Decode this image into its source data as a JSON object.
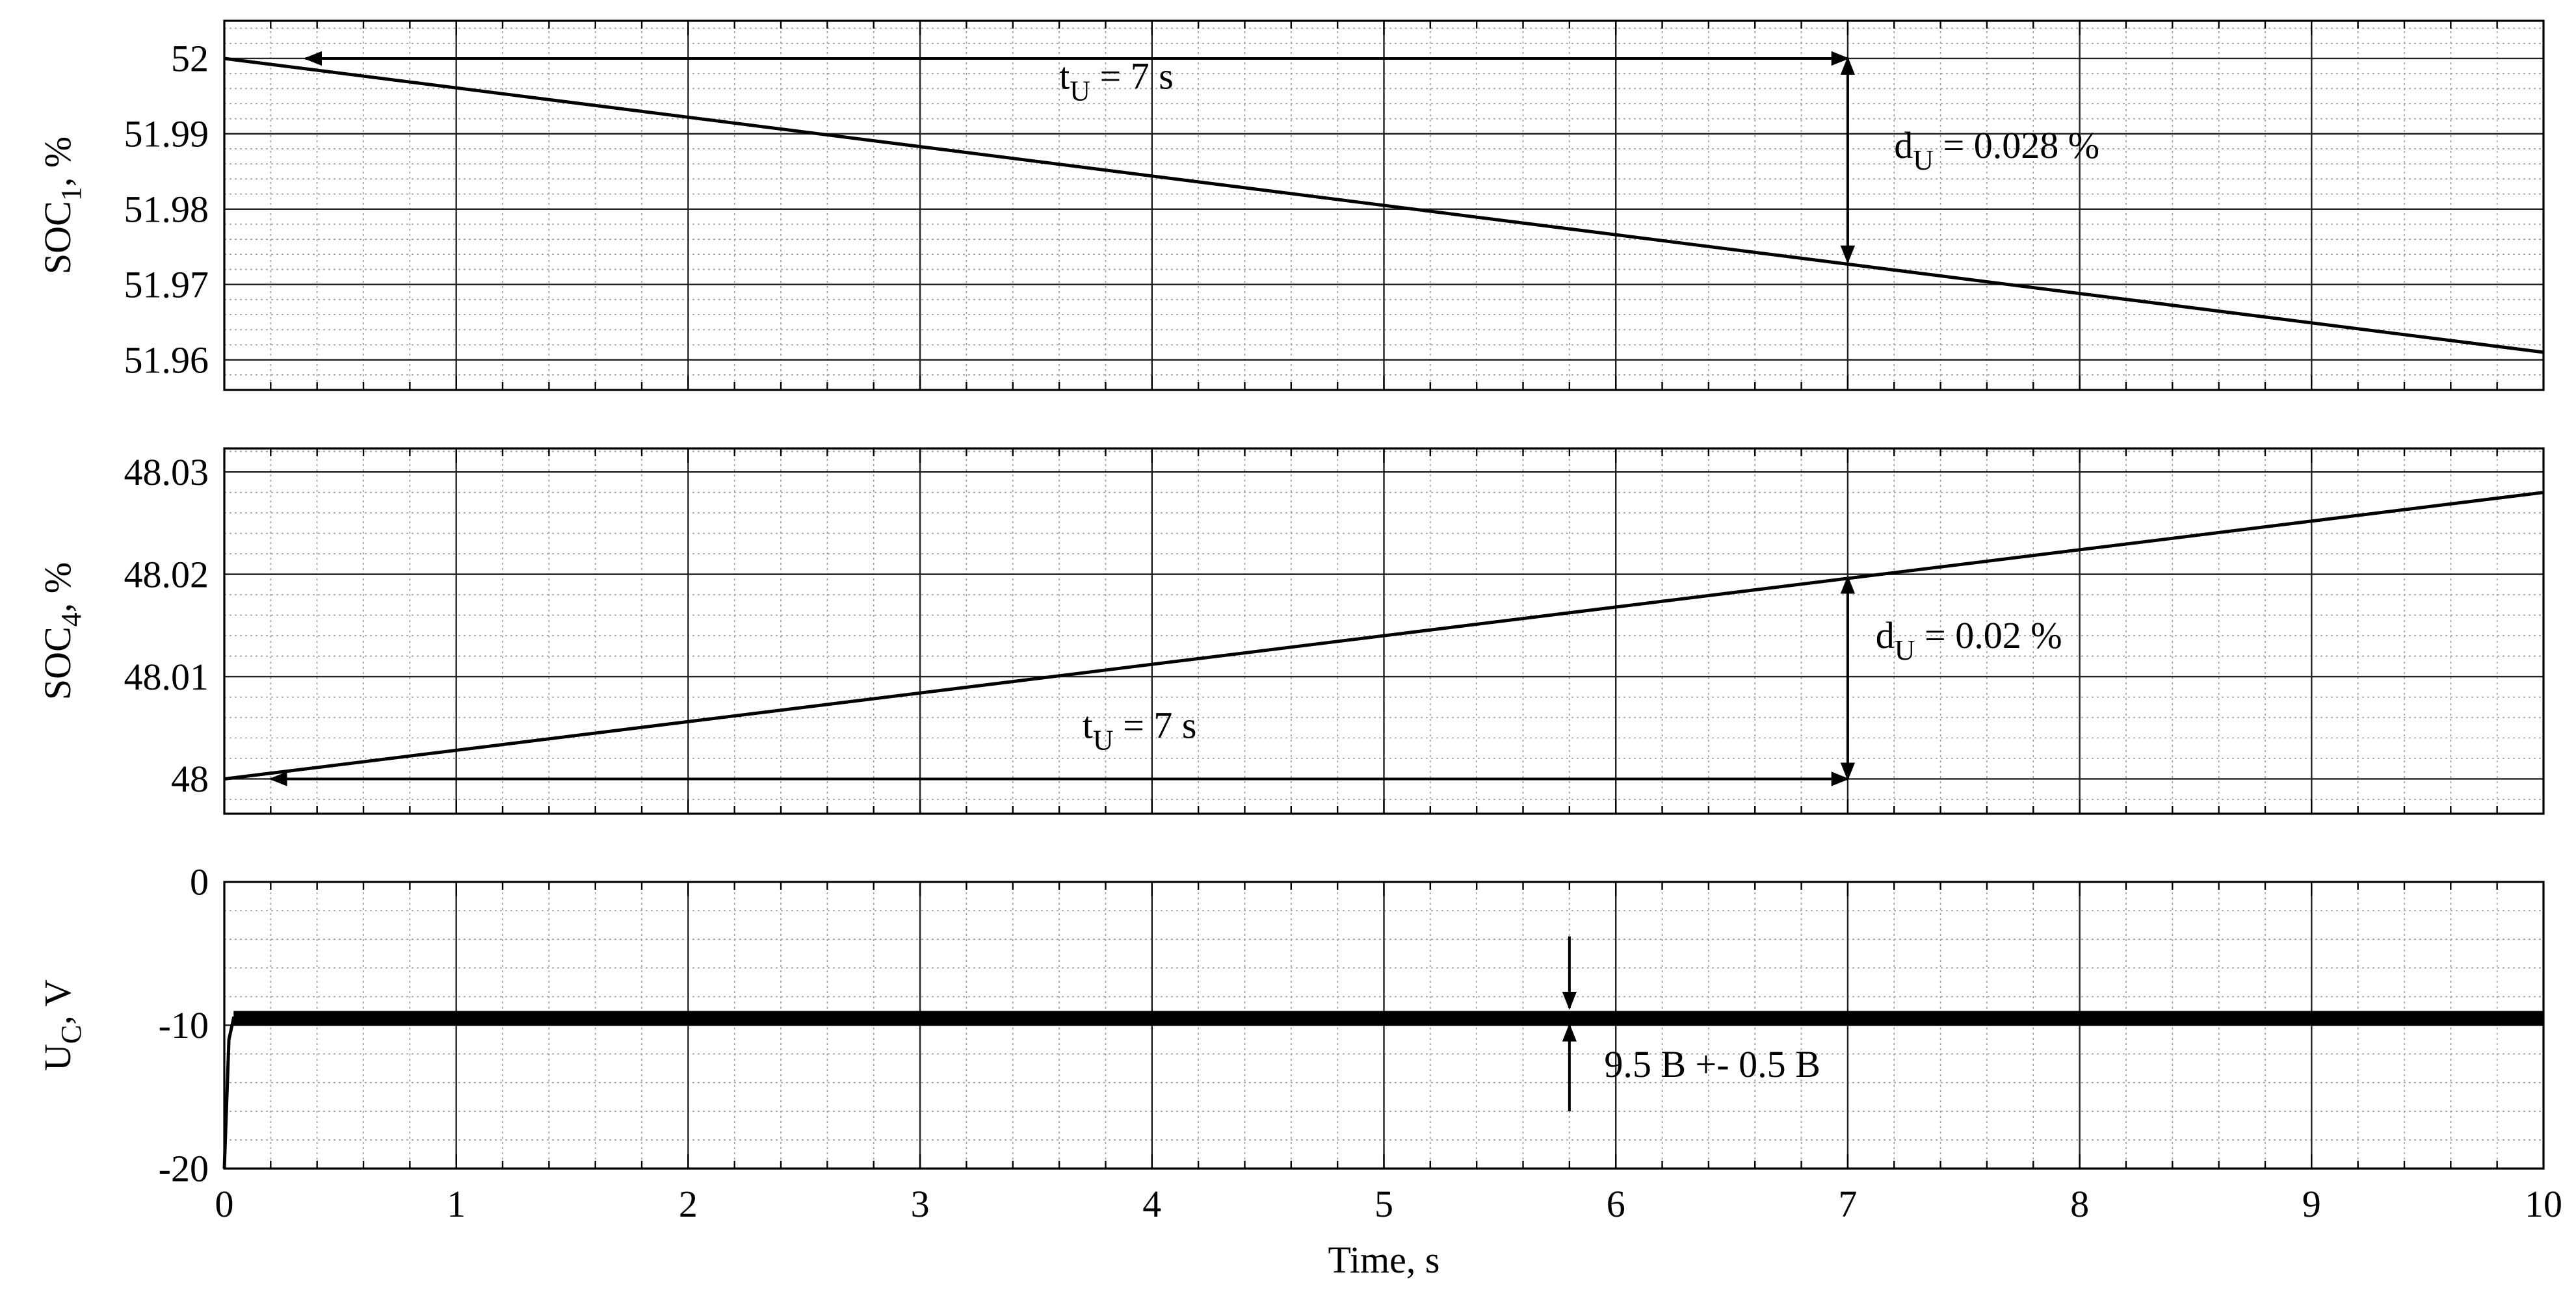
{
  "chart_data": [
    {
      "type": "line",
      "title": "",
      "xlabel": "",
      "ylabel": "SOC",
      "ylabel_sub": "1",
      "ylabel_suffix": ", %",
      "xlim": [
        0,
        10
      ],
      "ylim": [
        51.956,
        52.005
      ],
      "xticks": [
        0,
        1,
        2,
        3,
        4,
        5,
        6,
        7,
        8,
        9,
        10
      ],
      "yticks": [
        51.96,
        51.97,
        51.98,
        51.99,
        52
      ],
      "yticklabels": [
        "51.96",
        "51.97",
        "51.98",
        "51.99",
        "52"
      ],
      "grid": true,
      "series": [
        {
          "x": [
            0,
            10
          ],
          "y": [
            52.0,
            51.961
          ]
        }
      ],
      "annotations": [
        {
          "kind": "harrow",
          "x1": 0.35,
          "x2": 7,
          "y": 52.0
        },
        {
          "kind": "vbidir",
          "x": 7,
          "y1": 52.0,
          "y2": 51.973
        },
        {
          "kind": "label",
          "x": 3.6,
          "y": 51.996,
          "base": "t",
          "sub": "U",
          "rest": " = 7 s"
        },
        {
          "kind": "label",
          "x": 7.2,
          "y": 51.9868,
          "base": "d",
          "sub": "U",
          "rest": " = 0.028 %"
        }
      ]
    },
    {
      "type": "line",
      "title": "",
      "xlabel": "",
      "ylabel": "SOC",
      "ylabel_sub": "4",
      "ylabel_suffix": ", %",
      "xlim": [
        0,
        10
      ],
      "ylim": [
        47.9966,
        48.0323
      ],
      "xticks": [
        0,
        1,
        2,
        3,
        4,
        5,
        6,
        7,
        8,
        9,
        10
      ],
      "yticks": [
        48,
        48.01,
        48.02,
        48.03
      ],
      "yticklabels": [
        "48",
        "48.01",
        "48.02",
        "48.03"
      ],
      "grid": true,
      "series": [
        {
          "x": [
            0,
            10
          ],
          "y": [
            48.0,
            48.028
          ]
        }
      ],
      "annotations": [
        {
          "kind": "harrow",
          "x1": 0.2,
          "x2": 7,
          "y": 48.0
        },
        {
          "kind": "vbidir",
          "x": 7,
          "y1": 48.0,
          "y2": 48.0197
        },
        {
          "kind": "label",
          "x": 3.7,
          "y": 48.004,
          "base": "t",
          "sub": "U",
          "rest": " = 7 s"
        },
        {
          "kind": "label",
          "x": 7.12,
          "y": 48.0128,
          "base": "d",
          "sub": "U",
          "rest": " = 0.02 %"
        }
      ]
    },
    {
      "type": "line",
      "title": "",
      "xlabel": "Time, s",
      "ylabel": "U",
      "ylabel_sub": "C",
      "ylabel_suffix": ", V",
      "xlim": [
        0,
        10
      ],
      "ylim": [
        -20,
        0
      ],
      "xticks": [
        0,
        1,
        2,
        3,
        4,
        5,
        6,
        7,
        8,
        9,
        10
      ],
      "xticklabels": [
        "0",
        "1",
        "2",
        "3",
        "4",
        "5",
        "6",
        "7",
        "8",
        "9",
        "10"
      ],
      "yticks": [
        -20,
        -10,
        0
      ],
      "yticklabels": [
        "-20",
        "-10",
        "0"
      ],
      "grid": true,
      "series": [
        {
          "x": [
            0,
            0.02,
            0.04,
            10
          ],
          "y": [
            -20,
            -11,
            -9.5,
            -9.5
          ],
          "band": 0.5
        }
      ],
      "annotations": [
        {
          "kind": "downarrow",
          "x": 5.8,
          "y1": -3.8,
          "y2": -8.8
        },
        {
          "kind": "uparrow",
          "x": 5.8,
          "y1": -16,
          "y2": -10
        },
        {
          "kind": "label",
          "x": 5.95,
          "y": -13.6,
          "base": "9.5 B +- 0.5 B",
          "sub": "",
          "rest": ""
        }
      ]
    }
  ]
}
